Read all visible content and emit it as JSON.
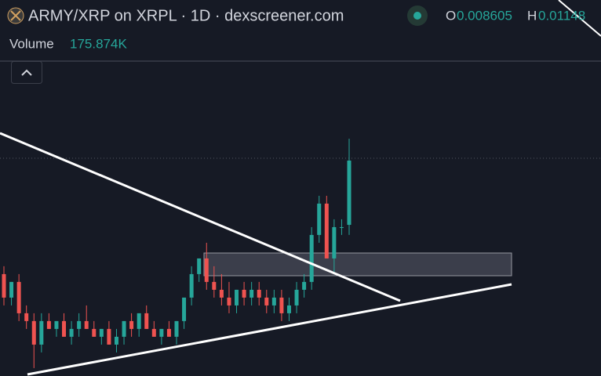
{
  "header": {
    "title": "ARMY/XRP on XRPL · 1D · dexscreener.com",
    "open_label": "O",
    "high_label": "H",
    "volume_label": "Volume",
    "volume": "175.874K"
  },
  "chart_data": {
    "type": "candlestick",
    "up_color": "#26a69a",
    "down_color": "#ef5350",
    "ylim": [
      0.00356,
      0.01611
    ],
    "open": [
      0.006961,
      0.006177,
      0.0067,
      0.005654,
      0.005393,
      0.004608,
      0.005393,
      0.005131,
      0.005393,
      0.00487,
      0.005131,
      0.005393,
      0.005131,
      0.00487,
      0.005131,
      0.004608,
      0.00487,
      0.005393,
      0.005131,
      0.005654,
      0.005131,
      0.00487,
      0.005131,
      0.00487,
      0.005393,
      0.006177,
      0.006961,
      0.007484,
      0.0067,
      0.006438,
      0.006177,
      0.005915,
      0.006438,
      0.006177,
      0.006438,
      0.006177,
      0.005915,
      0.006177,
      0.005654,
      0.005915,
      0.006438,
      0.0067,
      0.008268,
      0.009314,
      0.007484,
      0.008529,
      0.008605
    ],
    "high": [
      0.007223,
      0.0067,
      0.006961,
      0.005915,
      0.005654,
      0.005654,
      0.005654,
      0.005393,
      0.005654,
      0.005393,
      0.005654,
      0.005915,
      0.005393,
      0.005131,
      0.005393,
      0.005131,
      0.005393,
      0.005654,
      0.005654,
      0.005915,
      0.005393,
      0.005131,
      0.005393,
      0.005393,
      0.006177,
      0.007223,
      0.007484,
      0.008007,
      0.007223,
      0.006961,
      0.0067,
      0.006438,
      0.0067,
      0.0067,
      0.0067,
      0.006438,
      0.006438,
      0.006438,
      0.006177,
      0.0067,
      0.006961,
      0.008529,
      0.009575,
      0.009575,
      0.008791,
      0.008791,
      0.01148
    ],
    "low": [
      0.005915,
      0.005915,
      0.005393,
      0.005131,
      0.003824,
      0.004347,
      0.005131,
      0.00487,
      0.00487,
      0.004608,
      0.00487,
      0.005131,
      0.00487,
      0.004608,
      0.004608,
      0.004347,
      0.004608,
      0.00487,
      0.00487,
      0.005131,
      0.00487,
      0.004608,
      0.00487,
      0.004608,
      0.005131,
      0.005915,
      0.0067,
      0.006438,
      0.006177,
      0.005915,
      0.005654,
      0.005654,
      0.005915,
      0.005915,
      0.005915,
      0.005654,
      0.005654,
      0.005393,
      0.005393,
      0.005654,
      0.006177,
      0.006438,
      0.008007,
      0.007484,
      0.006961,
      0.008268,
      0.008268
    ],
    "close": [
      0.006177,
      0.0067,
      0.005654,
      0.005393,
      0.004608,
      0.005393,
      0.005131,
      0.005393,
      0.00487,
      0.005131,
      0.005393,
      0.005131,
      0.00487,
      0.005131,
      0.004608,
      0.00487,
      0.005393,
      0.005131,
      0.005654,
      0.005131,
      0.00487,
      0.005131,
      0.00487,
      0.005393,
      0.006177,
      0.006961,
      0.007484,
      0.0067,
      0.006438,
      0.006177,
      0.005915,
      0.006438,
      0.006177,
      0.006438,
      0.006177,
      0.005915,
      0.006177,
      0.005654,
      0.005915,
      0.006438,
      0.0067,
      0.008268,
      0.009314,
      0.007484,
      0.008529,
      0.008529,
      0.010751
    ]
  }
}
